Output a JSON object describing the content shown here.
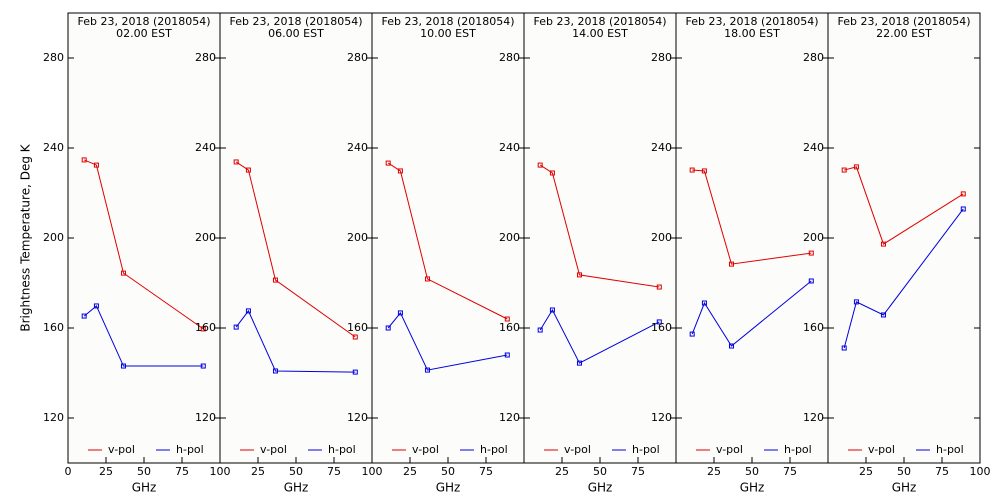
{
  "chart_data": [
    {
      "type": "line",
      "title": "Feb 23, 2018 (2018054)",
      "subtitle": "02.00 EST",
      "ylabel": "Brightness Temperature, Deg K",
      "xlabel": "GHz",
      "x": [
        10.65,
        18.7,
        36.5,
        89
      ],
      "series": [
        {
          "name": "v-pol",
          "color": "#e00000",
          "values": [
            234.7,
            232.4,
            184.4,
            159.6
          ]
        },
        {
          "name": "h-pol",
          "color": "#0000e0",
          "values": [
            165.3,
            169.8,
            143.1,
            143.1
          ]
        }
      ],
      "xlim": [
        0,
        100
      ],
      "ylim": [
        100,
        300
      ],
      "xticks": [
        0,
        25,
        50,
        75,
        100
      ],
      "yticks": [
        120,
        160,
        200,
        240,
        280
      ]
    },
    {
      "type": "line",
      "title": "Feb 23, 2018 (2018054)",
      "subtitle": "06.00 EST",
      "xlabel": "GHz",
      "x": [
        10.65,
        18.7,
        36.5,
        89
      ],
      "series": [
        {
          "name": "v-pol",
          "color": "#e00000",
          "values": [
            233.8,
            230.2,
            181.3,
            156
          ]
        },
        {
          "name": "h-pol",
          "color": "#0000e0",
          "values": [
            160.4,
            167.6,
            140.9,
            140.4
          ]
        }
      ],
      "xlim": [
        0,
        100
      ],
      "ylim": [
        100,
        300
      ],
      "xticks": [
        25,
        50,
        75,
        100
      ],
      "yticks": [
        120,
        160,
        200,
        240,
        280
      ]
    },
    {
      "type": "line",
      "title": "Feb 23, 2018 (2018054)",
      "subtitle": "10.00 EST",
      "xlabel": "GHz",
      "x": [
        10.65,
        18.7,
        36.5,
        89
      ],
      "series": [
        {
          "name": "v-pol",
          "color": "#e00000",
          "values": [
            233.3,
            229.8,
            181.8,
            164
          ]
        },
        {
          "name": "h-pol",
          "color": "#0000e0",
          "values": [
            160,
            166.7,
            141.3,
            148
          ]
        }
      ],
      "xlim": [
        0,
        100
      ],
      "ylim": [
        100,
        300
      ],
      "xticks": [
        25,
        50,
        75
      ],
      "yticks": [
        120,
        160,
        200,
        240,
        280
      ]
    },
    {
      "type": "line",
      "title": "Feb 23, 2018 (2018054)",
      "subtitle": "14.00 EST",
      "xlabel": "GHz",
      "x": [
        10.65,
        18.7,
        36.5,
        89
      ],
      "series": [
        {
          "name": "v-pol",
          "color": "#e00000",
          "values": [
            232.4,
            228.9,
            183.6,
            178.2
          ]
        },
        {
          "name": "h-pol",
          "color": "#0000e0",
          "values": [
            159.1,
            168,
            144.4,
            162.7
          ]
        }
      ],
      "xlim": [
        0,
        100
      ],
      "ylim": [
        100,
        300
      ],
      "xticks": [
        25,
        50,
        75
      ],
      "yticks": [
        120,
        160,
        200,
        240,
        280
      ]
    },
    {
      "type": "line",
      "title": "Feb 23, 2018 (2018054)",
      "subtitle": "18.00 EST",
      "xlabel": "GHz",
      "x": [
        10.65,
        18.7,
        36.5,
        89
      ],
      "series": [
        {
          "name": "v-pol",
          "color": "#e00000",
          "values": [
            230.2,
            229.8,
            188.4,
            193.3
          ]
        },
        {
          "name": "h-pol",
          "color": "#0000e0",
          "values": [
            157.3,
            171.1,
            152,
            180.9
          ]
        }
      ],
      "xlim": [
        0,
        100
      ],
      "ylim": [
        100,
        300
      ],
      "xticks": [
        25,
        50,
        75
      ],
      "yticks": [
        120,
        160,
        200,
        240,
        280
      ]
    },
    {
      "type": "line",
      "title": "Feb 23, 2018 (2018054)",
      "subtitle": "22.00 EST",
      "xlabel": "GHz",
      "x": [
        10.65,
        18.7,
        36.5,
        89
      ],
      "series": [
        {
          "name": "v-pol",
          "color": "#e00000",
          "values": [
            230.2,
            231.6,
            197.3,
            219.6
          ]
        },
        {
          "name": "h-pol",
          "color": "#0000e0",
          "values": [
            151.1,
            171.6,
            165.8,
            212.9
          ]
        }
      ],
      "xlim": [
        0,
        100
      ],
      "ylim": [
        100,
        300
      ],
      "xticks": [
        25,
        50,
        75,
        100
      ],
      "yticks": [
        120,
        160,
        200,
        240,
        280
      ]
    }
  ]
}
